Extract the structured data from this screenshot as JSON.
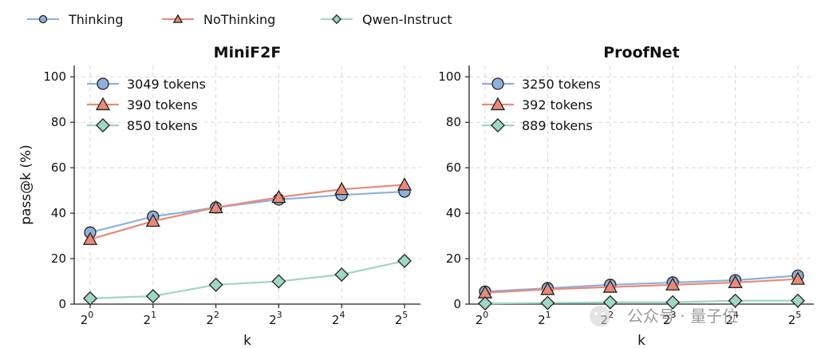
{
  "legend": [
    {
      "label": "Thinking",
      "color": "#8FB1D9",
      "marker": "circle"
    },
    {
      "label": "NoThinking",
      "color": "#E88A7B",
      "marker": "triangle"
    },
    {
      "label": "Qwen-Instruct",
      "color": "#9FD6C5",
      "marker": "diamond"
    }
  ],
  "watermark": "公众号 · 量子位",
  "chart_data": [
    {
      "type": "line",
      "title": "MiniF2F",
      "xlabel": "k",
      "ylabel": "pass@k (%)",
      "x": [
        1,
        2,
        4,
        8,
        16,
        32
      ],
      "x_tick_labels": [
        {
          "base": "2",
          "exp": "0"
        },
        {
          "base": "2",
          "exp": "1"
        },
        {
          "base": "2",
          "exp": "2"
        },
        {
          "base": "2",
          "exp": "3"
        },
        {
          "base": "2",
          "exp": "4"
        },
        {
          "base": "2",
          "exp": "5"
        }
      ],
      "x_scale": "log2",
      "ylim": [
        0,
        105
      ],
      "yticks": [
        0,
        20,
        40,
        60,
        80,
        100
      ],
      "grid": true,
      "legend_position": "top-left",
      "series": [
        {
          "name": "Thinking",
          "legend_label": "3049 tokens",
          "color": "#8FB1D9",
          "marker": "circle",
          "values": [
            31.5,
            38.5,
            42.5,
            46,
            48,
            49.5
          ]
        },
        {
          "name": "NoThinking",
          "legend_label": "390 tokens",
          "color": "#E88A7B",
          "marker": "triangle",
          "values": [
            28.5,
            36.5,
            42.5,
            47,
            50.5,
            52.5
          ]
        },
        {
          "name": "Qwen-Instruct",
          "legend_label": "850 tokens",
          "color": "#9FD6C5",
          "marker": "diamond",
          "values": [
            2.5,
            3.5,
            8.5,
            10,
            13,
            19
          ]
        }
      ]
    },
    {
      "type": "line",
      "title": "ProofNet",
      "xlabel": "k",
      "ylabel": "",
      "x": [
        1,
        2,
        4,
        8,
        16,
        32
      ],
      "x_tick_labels": [
        {
          "base": "2",
          "exp": "0"
        },
        {
          "base": "2",
          "exp": "1"
        },
        {
          "base": "2",
          "exp": "2"
        },
        {
          "base": "2",
          "exp": "3"
        },
        {
          "base": "2",
          "exp": "4"
        },
        {
          "base": "2",
          "exp": "5"
        }
      ],
      "x_scale": "log2",
      "ylim": [
        0,
        105
      ],
      "yticks": [
        0,
        20,
        40,
        60,
        80,
        100
      ],
      "grid": true,
      "legend_position": "top-left",
      "series": [
        {
          "name": "Thinking",
          "legend_label": "3250 tokens",
          "color": "#8FB1D9",
          "marker": "circle",
          "values": [
            5.5,
            7,
            8.5,
            9.5,
            10.5,
            12.5
          ]
        },
        {
          "name": "NoThinking",
          "legend_label": "392 tokens",
          "color": "#E88A7B",
          "marker": "triangle",
          "values": [
            5,
            6.5,
            7.5,
            8.5,
            9.5,
            11
          ]
        },
        {
          "name": "Qwen-Instruct",
          "legend_label": "889 tokens",
          "color": "#9FD6C5",
          "marker": "diamond",
          "values": [
            0.3,
            0.5,
            0.8,
            0.8,
            1.5,
            1.5
          ]
        }
      ]
    }
  ]
}
